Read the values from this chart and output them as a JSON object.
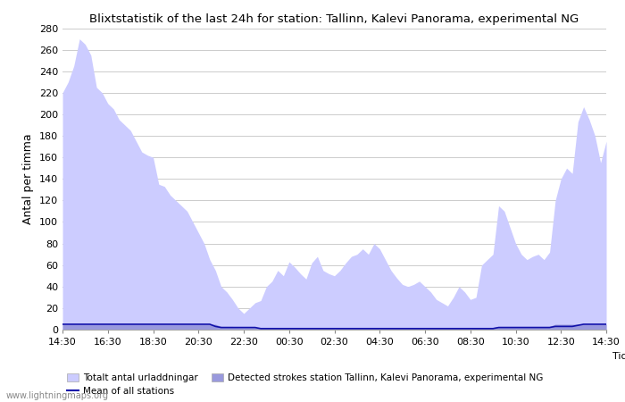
{
  "title": "Blixtstatistik of the last 24h for station: Tallinn, Kalevi Panorama, experimental NG",
  "ylabel": "Antal per timma",
  "tid_label": "Tid",
  "xlim_start": 0,
  "xlim_end": 24,
  "ylim": [
    0,
    280
  ],
  "yticks": [
    0,
    20,
    40,
    60,
    80,
    100,
    120,
    140,
    160,
    180,
    200,
    220,
    240,
    260,
    280
  ],
  "xtick_positions": [
    0,
    2,
    4,
    6,
    8,
    10,
    12,
    14,
    16,
    18,
    20,
    22,
    24
  ],
  "xtick_labels": [
    "14:30",
    "16:30",
    "18:30",
    "20:30",
    "22:30",
    "00:30",
    "02:30",
    "04:30",
    "06:30",
    "08:30",
    "10:30",
    "12:30",
    "14:30"
  ],
  "background_color": "#ffffff",
  "grid_color": "#cccccc",
  "fill_color_total": "#ccccff",
  "fill_color_detected": "#9999dd",
  "line_color_mean": "#1111aa",
  "watermark": "www.lightningmaps.org",
  "legend_label_total": "Totalt antal urladdningar",
  "legend_label_mean": "Mean of all stations",
  "legend_label_detected": "Detected strokes station Tallinn, Kalevi Panorama, experimental NG",
  "x_hours": [
    0,
    0.25,
    0.5,
    0.75,
    1.0,
    1.25,
    1.5,
    1.75,
    2.0,
    2.25,
    2.5,
    2.75,
    3.0,
    3.25,
    3.5,
    3.75,
    4.0,
    4.25,
    4.5,
    4.75,
    5.0,
    5.25,
    5.5,
    5.75,
    6.0,
    6.25,
    6.5,
    6.75,
    7.0,
    7.25,
    7.5,
    7.75,
    8.0,
    8.25,
    8.5,
    8.75,
    9.0,
    9.25,
    9.5,
    9.75,
    10.0,
    10.25,
    10.5,
    10.75,
    11.0,
    11.25,
    11.5,
    11.75,
    12.0,
    12.25,
    12.5,
    12.75,
    13.0,
    13.25,
    13.5,
    13.75,
    14.0,
    14.25,
    14.5,
    14.75,
    15.0,
    15.25,
    15.5,
    15.75,
    16.0,
    16.25,
    16.5,
    16.75,
    17.0,
    17.25,
    17.5,
    17.75,
    18.0,
    18.25,
    18.5,
    18.75,
    19.0,
    19.25,
    19.5,
    19.75,
    20.0,
    20.25,
    20.5,
    20.75,
    21.0,
    21.25,
    21.5,
    21.75,
    22.0,
    22.25,
    22.5,
    22.75,
    23.0,
    23.25,
    23.5,
    23.75,
    24.0
  ],
  "y_total": [
    220,
    230,
    245,
    270,
    265,
    255,
    225,
    220,
    210,
    205,
    195,
    190,
    185,
    175,
    165,
    162,
    160,
    135,
    133,
    125,
    120,
    115,
    110,
    100,
    90,
    80,
    65,
    55,
    40,
    35,
    28,
    20,
    15,
    20,
    25,
    27,
    40,
    45,
    55,
    50,
    63,
    58,
    52,
    47,
    62,
    68,
    55,
    52,
    50,
    55,
    62,
    68,
    70,
    75,
    70,
    80,
    75,
    65,
    55,
    48,
    42,
    40,
    42,
    45,
    40,
    35,
    28,
    25,
    22,
    30,
    40,
    35,
    28,
    30,
    60,
    65,
    70,
    115,
    110,
    95,
    80,
    70,
    65,
    68,
    70,
    65,
    72,
    120,
    140,
    150,
    145,
    193,
    207,
    195,
    180,
    155,
    175
  ],
  "y_detected": [
    5,
    5,
    5,
    5,
    5,
    5,
    5,
    5,
    5,
    5,
    5,
    5,
    5,
    5,
    5,
    5,
    5,
    5,
    5,
    5,
    5,
    5,
    5,
    5,
    5,
    5,
    5,
    5,
    3,
    3,
    3,
    2,
    2,
    2,
    2,
    2,
    2,
    2,
    2,
    2,
    2,
    2,
    2,
    2,
    2,
    2,
    2,
    2,
    2,
    2,
    2,
    2,
    2,
    2,
    2,
    2,
    2,
    2,
    2,
    2,
    2,
    2,
    2,
    2,
    2,
    2,
    2,
    2,
    2,
    2,
    2,
    2,
    2,
    2,
    2,
    2,
    2,
    3,
    3,
    3,
    3,
    3,
    3,
    3,
    3,
    3,
    3,
    5,
    5,
    5,
    5,
    5,
    5,
    5,
    5,
    5,
    5
  ],
  "y_mean": [
    5,
    5,
    5,
    5,
    5,
    5,
    5,
    5,
    5,
    5,
    5,
    5,
    5,
    5,
    5,
    5,
    5,
    5,
    5,
    5,
    5,
    5,
    5,
    5,
    5,
    5,
    5,
    3,
    2,
    2,
    2,
    2,
    2,
    2,
    2,
    1,
    1,
    1,
    1,
    1,
    1,
    1,
    1,
    1,
    1,
    1,
    1,
    1,
    1,
    1,
    1,
    1,
    1,
    1,
    1,
    1,
    1,
    1,
    1,
    1,
    1,
    1,
    1,
    1,
    1,
    1,
    1,
    1,
    1,
    1,
    1,
    1,
    1,
    1,
    1,
    1,
    1,
    2,
    2,
    2,
    2,
    2,
    2,
    2,
    2,
    2,
    2,
    3,
    3,
    3,
    3,
    4,
    5,
    5,
    5,
    5,
    5
  ]
}
